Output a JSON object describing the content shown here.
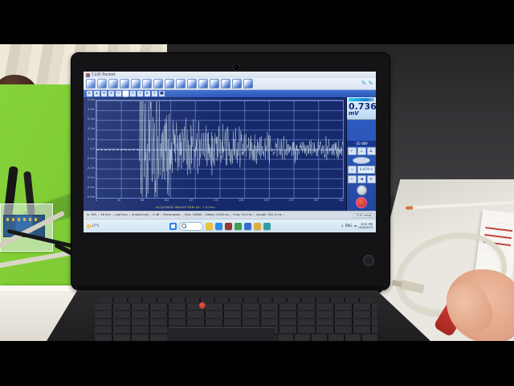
{
  "colors": {
    "desk_mat": "#7cc733",
    "wall": "#353538",
    "desk_white": "#eae7e0",
    "screen_bg": "#16296b",
    "grid_line": "#8296d2",
    "trace": "#d8efec",
    "panel_blue": "#2e5ec6",
    "taskbar": "#d5e6f3",
    "meter_text": "#0b2f7e",
    "accent_red": "#d6322e"
  },
  "app": {
    "window_title": "CLIO Pocket",
    "toolbar_main": {
      "icons": [
        {
          "name": "menu-icon"
        },
        {
          "name": "open-icon"
        },
        {
          "name": "save-icon"
        },
        {
          "name": "save-as-icon"
        },
        {
          "name": "export-icon"
        },
        {
          "name": "print-icon"
        },
        {
          "name": "settings-check-icon"
        },
        {
          "name": "time-plot-icon"
        },
        {
          "name": "freq-plot-icon"
        },
        {
          "name": "layout-single-icon"
        },
        {
          "name": "layout-split-h-icon"
        },
        {
          "name": "layout-split-v-icon"
        },
        {
          "name": "overlay-plot-icon"
        },
        {
          "name": "palette-icon"
        },
        {
          "name": "about-icon"
        }
      ],
      "pencil_icons": [
        {
          "name": "pencil-icon",
          "glyph": "✎"
        },
        {
          "name": "pencil-icon",
          "glyph": "✎"
        }
      ]
    },
    "graph_toolbar": {
      "icons": [
        {
          "name": "cursor-icon",
          "glyph": "▸"
        },
        {
          "name": "marker-up-icon",
          "glyph": "▴"
        },
        {
          "name": "marker-down-icon",
          "glyph": "▾"
        },
        {
          "name": "zoom-in-icon",
          "glyph": "+"
        },
        {
          "name": "zoom-out-icon",
          "glyph": "−"
        },
        {
          "name": "select-region-icon",
          "glyph": "",
          "selected": true
        },
        {
          "name": "step-back-icon",
          "glyph": "«"
        },
        {
          "name": "step-fwd-icon",
          "glyph": "»"
        },
        {
          "name": "play-icon",
          "glyph": "▸"
        },
        {
          "name": "info-icon",
          "glyph": "i"
        },
        {
          "name": "stop-icon",
          "glyph": "■"
        }
      ]
    },
    "meter": {
      "value": "0.736",
      "unit": "mV"
    },
    "panel": {
      "level_label": "-20 dBV",
      "buttons": [
        {
          "name": "check-button",
          "glyph": "✓"
        },
        {
          "name": "ground-button",
          "glyph": "⊥"
        },
        {
          "name": "phase-button",
          "glyph": "∠"
        }
      ],
      "minus_label": "−",
      "voltage": "0.979 V",
      "vol_buttons": [
        {
          "name": "minus-button",
          "glyph": "−"
        },
        {
          "name": "speaker-button",
          "glyph": "◄"
        },
        {
          "name": "plus-button",
          "glyph": "+"
        }
      ]
    },
    "chart": {
      "y_labels": [
        "0.5m",
        "0.4m",
        "0.3m",
        "0.2m",
        "0.1m",
        "0.0",
        "-0.1m",
        "-0.2m",
        "-0.3m",
        "-0.4m",
        "-0.5m"
      ],
      "x_labels": [
        "0",
        "34",
        "68",
        "102",
        "137",
        "171",
        "205",
        "239",
        "273",
        "307",
        "341"
      ],
      "note": "ACQUIRED WAVEFORM   Dt: 7.07ms",
      "wave": {
        "points": 640,
        "burst_start": 0.175,
        "seed": 9
      }
    },
    "statusbar": {
      "segments": [
        "In: MIC",
        "48 kHz",
        "LogChirp",
        "Unbalanced",
        "0 dB",
        "Rectangular",
        "Size: 16384",
        "Delay: 0.000 ms",
        "Freq: 23.4 Hz",
        "Length: 341.3 ms"
      ],
      "ready": "CLIO ready"
    },
    "taskbar": {
      "weather": "17°C",
      "icons": [
        {
          "name": "taskbar-folder-icon",
          "color": "#e8c33c"
        },
        {
          "name": "taskbar-edge-icon",
          "color": "#2b8de8"
        },
        {
          "name": "taskbar-app-red-icon",
          "color": "#93382c"
        },
        {
          "name": "taskbar-app-green-icon",
          "color": "#3fa04c"
        },
        {
          "name": "taskbar-app-blue-icon",
          "color": "#3a6cd0"
        },
        {
          "name": "taskbar-app-yellow-icon",
          "color": "#d8b03c"
        },
        {
          "name": "taskbar-app-teal-icon",
          "color": "#2f9ea0"
        }
      ],
      "tray": {
        "caret": "∧",
        "lang": "ENG",
        "speaker": "◄",
        "time": "8:52 PM",
        "date": "10/8/2023"
      }
    }
  }
}
